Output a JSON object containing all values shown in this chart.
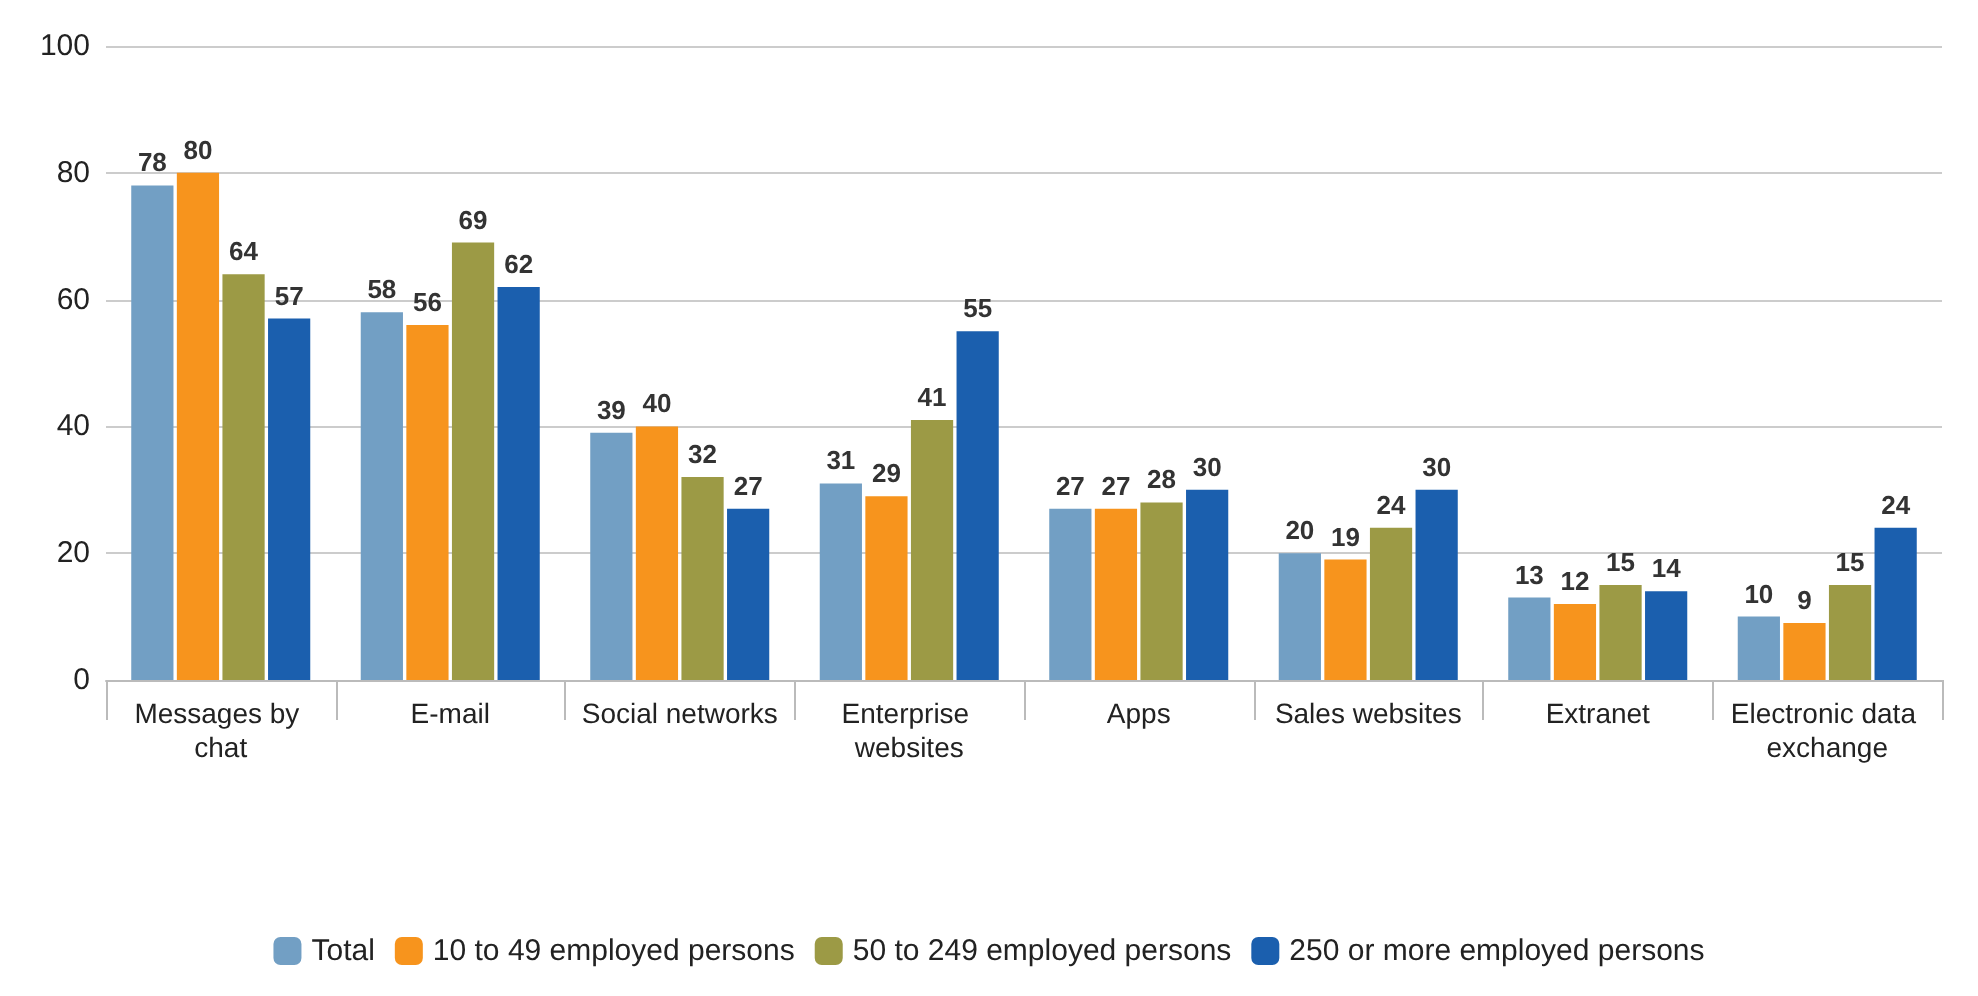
{
  "chart_data": {
    "type": "bar",
    "categories": [
      "Messages by chat",
      "E-mail",
      "Social networks",
      "Enterprise websites",
      "Apps",
      "Sales websites",
      "Extranet",
      "Electronic data exchange"
    ],
    "series": [
      {
        "name": "Total",
        "color": "#729fc4",
        "values": [
          78,
          58,
          39,
          31,
          27,
          20,
          13,
          10
        ]
      },
      {
        "name": "10 to 49 employed persons",
        "color": "#f7941d",
        "values": [
          80,
          56,
          40,
          29,
          27,
          19,
          12,
          9
        ]
      },
      {
        "name": "50 to 249 employed persons",
        "color": "#9c9a45",
        "values": [
          64,
          69,
          32,
          41,
          28,
          24,
          15,
          15
        ]
      },
      {
        "name": "250 or more employed persons",
        "color": "#1b5fae",
        "values": [
          57,
          62,
          27,
          55,
          30,
          30,
          14,
          24
        ]
      }
    ],
    "ylim": [
      0,
      100
    ],
    "yticks": [
      0,
      20,
      40,
      60,
      80,
      100
    ],
    "grid": "y",
    "legend": "bottom",
    "data_labels": true
  }
}
